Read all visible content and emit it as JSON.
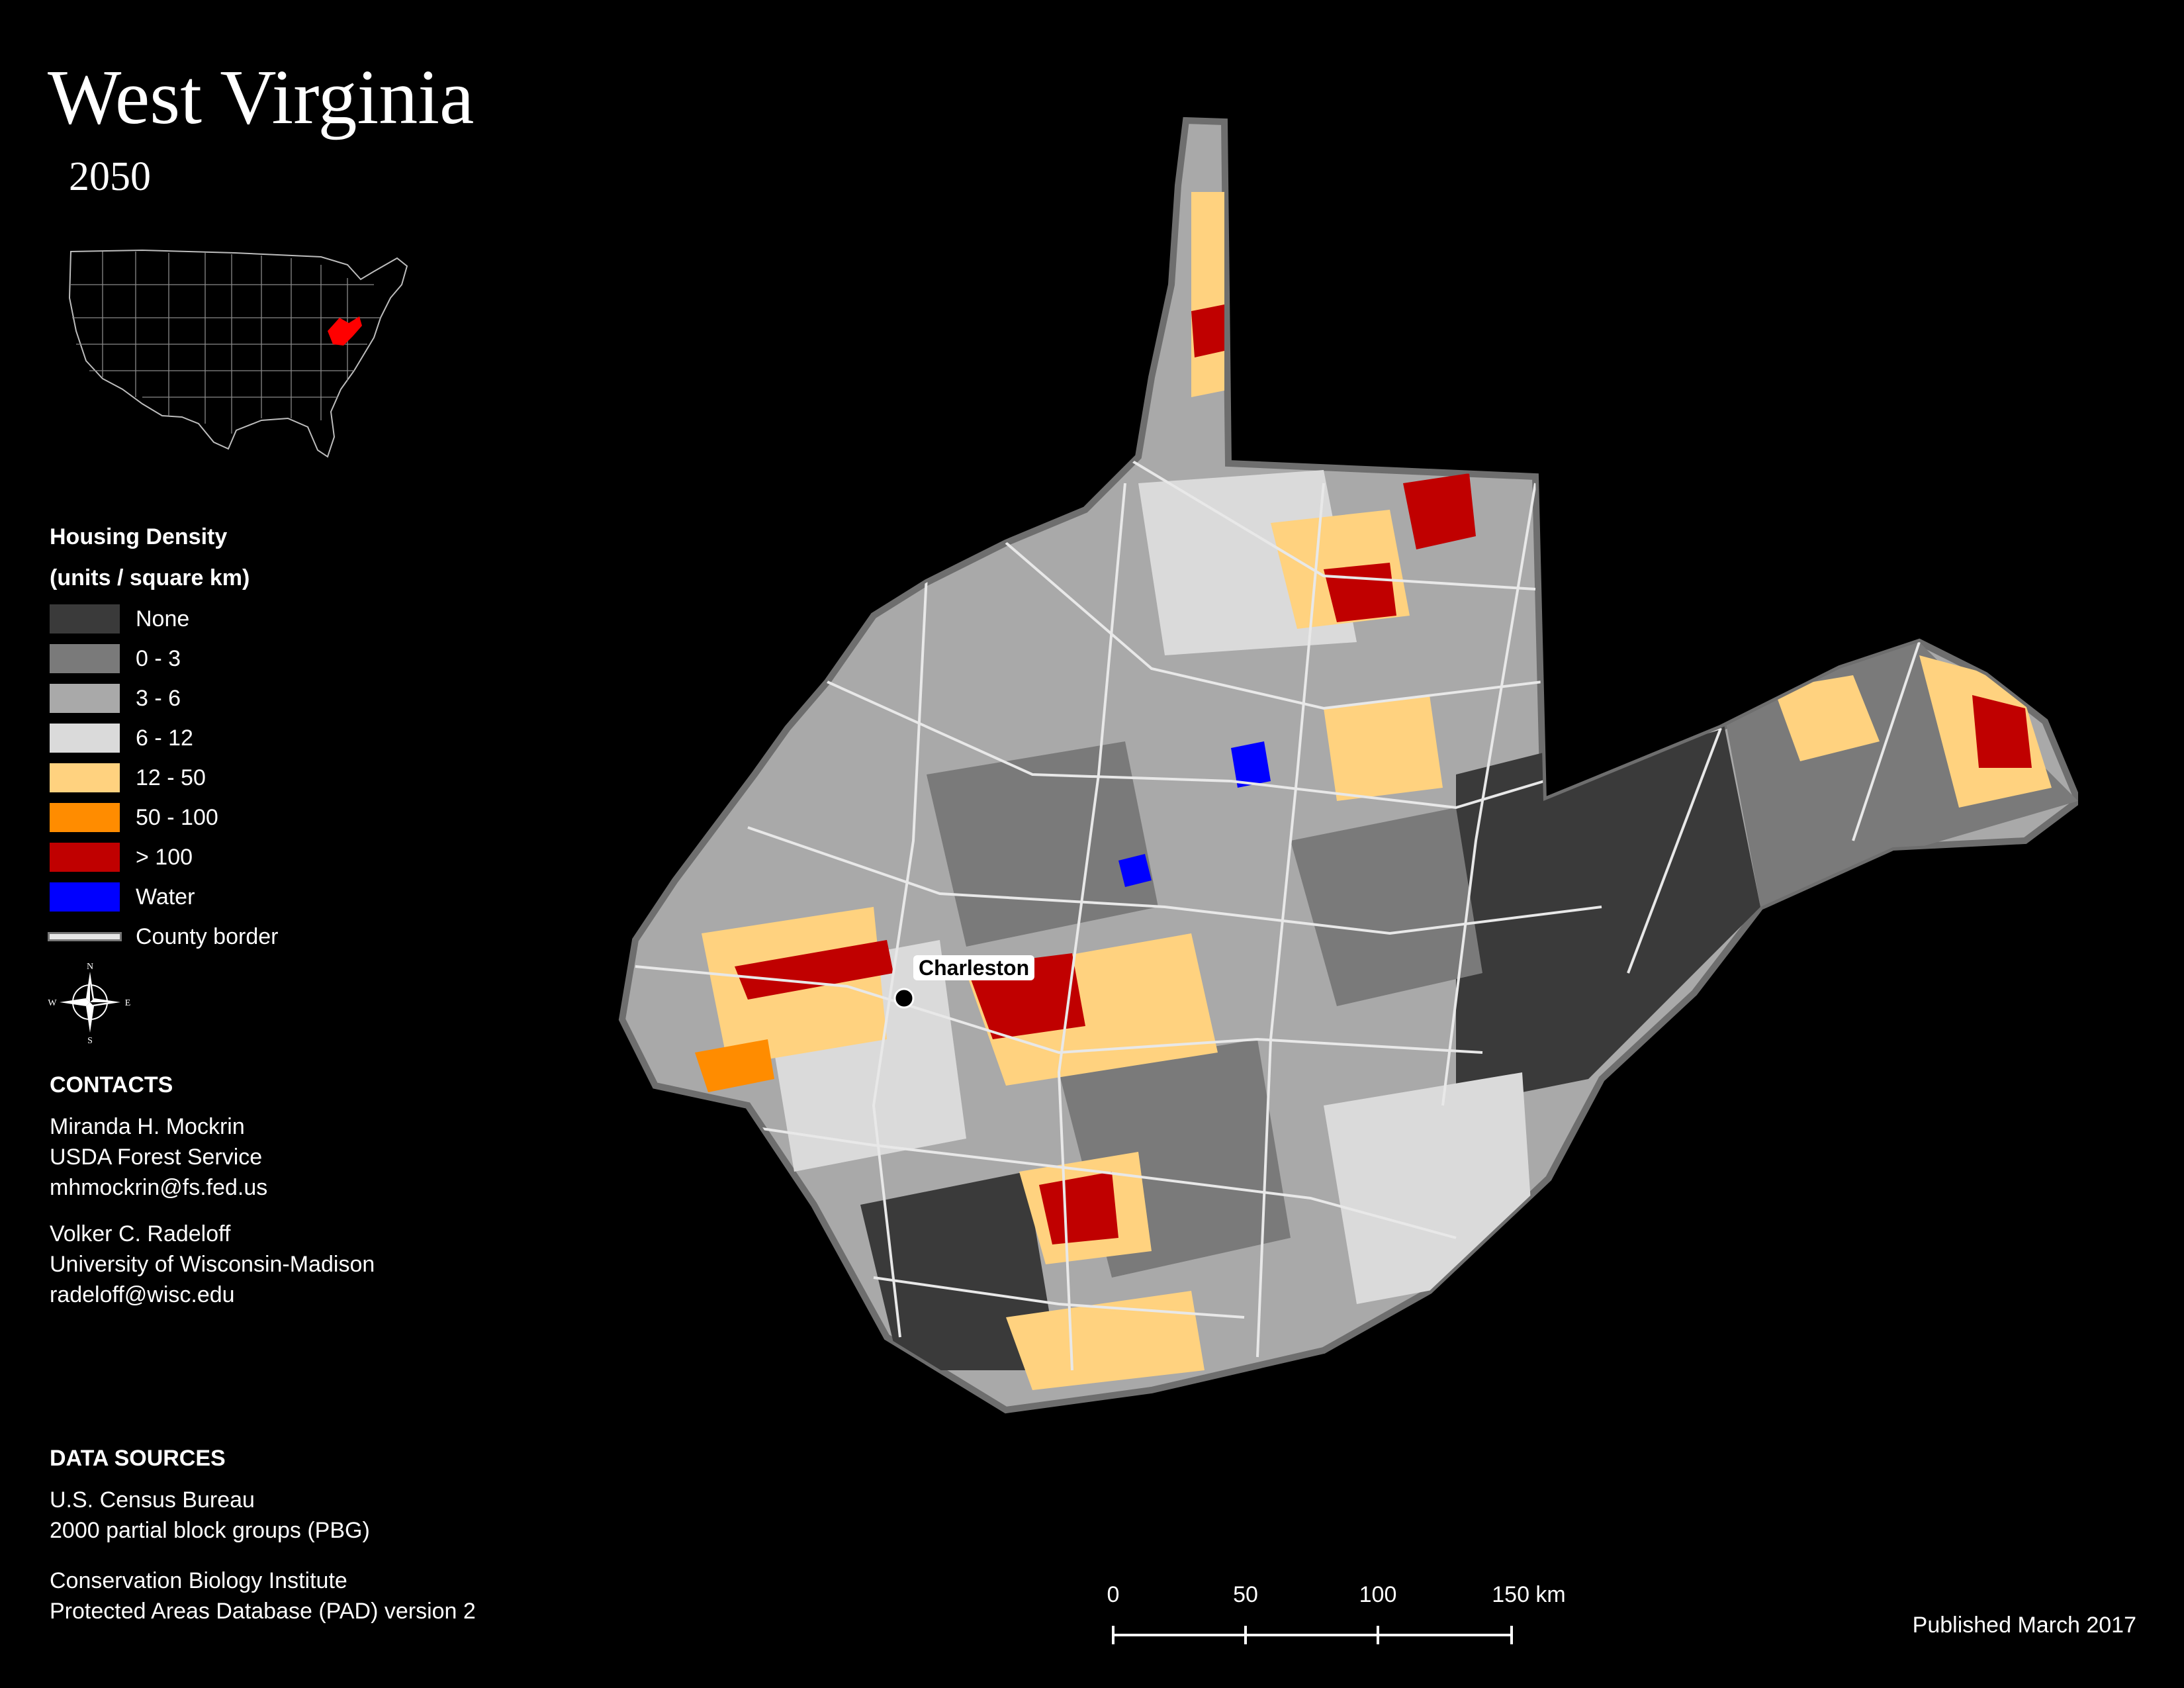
{
  "title": "West Virginia",
  "subtitle": "2050",
  "legend": {
    "title_line1": "Housing Density",
    "title_line2": "(units / square km)",
    "items": [
      {
        "label": "None",
        "color": "#3a3a3a"
      },
      {
        "label": "0 - 3",
        "color": "#7a7a7a"
      },
      {
        "label": "3 - 6",
        "color": "#a9a9a9"
      },
      {
        "label": "6 - 12",
        "color": "#dadada"
      },
      {
        "label": "12 - 50",
        "color": "#ffd27f"
      },
      {
        "label": "50 - 100",
        "color": "#ff8c00"
      },
      {
        "label": "> 100",
        "color": "#c00000"
      },
      {
        "label": "Water",
        "color": "#0000ff"
      }
    ],
    "county_border_label": "County border"
  },
  "compass": {
    "n": "N",
    "s": "S",
    "e": "E",
    "w": "W"
  },
  "contacts": {
    "heading": "CONTACTS",
    "person1": {
      "name": "Miranda H. Mockrin",
      "org": "USDA Forest Service",
      "email": "mhmockrin@fs.fed.us"
    },
    "person2": {
      "name": "Volker C. Radeloff",
      "org": "University of Wisconsin-Madison",
      "email": "radeloff@wisc.edu"
    }
  },
  "data_sources": {
    "heading": "DATA SOURCES",
    "source1_line1": "U.S. Census Bureau",
    "source1_line2": "2000 partial block groups (PBG)",
    "source2_line1": "Conservation Biology Institute",
    "source2_line2": "Protected Areas Database (PAD) version 2"
  },
  "map": {
    "city_label": "Charleston",
    "inset_highlight_color": "#ff0000"
  },
  "scale_bar": {
    "labels": [
      "0",
      "50",
      "100",
      "150 km"
    ]
  },
  "published": "Published March 2017"
}
